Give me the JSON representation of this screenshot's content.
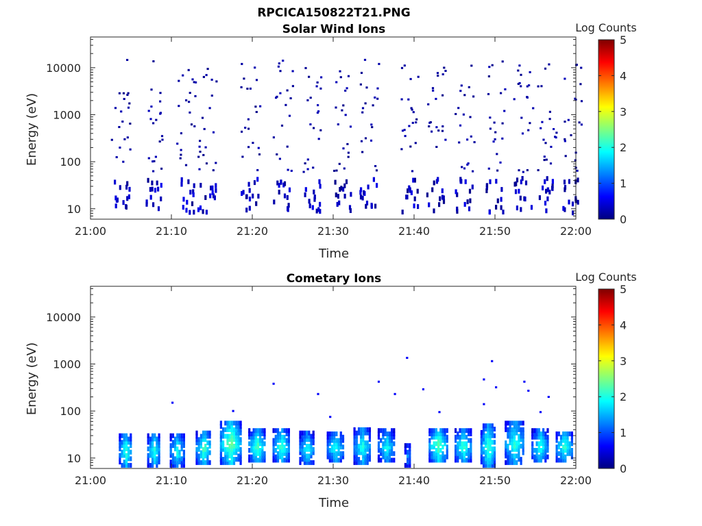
{
  "figure": {
    "title": "RPCICA150822T21.PNG"
  },
  "colormap": {
    "name": "jet",
    "stops": [
      "#00007f",
      "#0000ff",
      "#00ffff",
      "#ffff00",
      "#ff0000",
      "#7f0000"
    ]
  },
  "chart_data": [
    {
      "type": "heatmap",
      "title": "Solar Wind Ions",
      "xlabel": "Time",
      "ylabel": "Energy (eV)",
      "yscale": "log",
      "xlim": [
        "21:00",
        "22:00"
      ],
      "ylim": [
        6,
        45000
      ],
      "xticks": [
        "21:00",
        "21:10",
        "21:20",
        "21:30",
        "21:40",
        "21:50",
        "22:00"
      ],
      "yticks": [
        {
          "value": 10,
          "label": "10"
        },
        {
          "value": 100,
          "label": "100"
        },
        {
          "value": 1000,
          "label": "1000"
        },
        {
          "value": 10000,
          "label": "10000"
        }
      ],
      "colorbar": {
        "label": "Log Counts",
        "range": [
          0,
          5
        ],
        "ticks": [
          "0",
          "1",
          "2",
          "3",
          "4",
          "5"
        ]
      },
      "sweep_start_minutes": [
        2.5,
        6.8,
        10.5,
        13.2,
        18.5,
        22.5,
        26.2,
        30.0,
        33.2,
        38.2,
        41.5,
        45.0,
        48.8,
        52.2,
        55.2,
        58.2
      ],
      "band_low": {
        "energy_eV": [
          8,
          45
        ],
        "log_counts": [
          0.05,
          0.55
        ]
      },
      "band_high": {
        "energy_eV": [
          60,
          15000
        ],
        "log_counts": [
          0.05,
          0.3
        ]
      }
    },
    {
      "type": "heatmap",
      "title": "Cometary Ions",
      "xlabel": "Time",
      "ylabel": "Energy (eV)",
      "yscale": "log",
      "xlim": [
        "21:00",
        "22:00"
      ],
      "ylim": [
        6,
        45000
      ],
      "xticks": [
        "21:00",
        "21:10",
        "21:20",
        "21:30",
        "21:40",
        "21:50",
        "22:00"
      ],
      "yticks": [
        {
          "value": 10,
          "label": "10"
        },
        {
          "value": 100,
          "label": "100"
        },
        {
          "value": 1000,
          "label": "1000"
        },
        {
          "value": 10000,
          "label": "10000"
        }
      ],
      "colorbar": {
        "label": "Log Counts",
        "range": [
          0,
          5
        ],
        "ticks": [
          "0",
          "1",
          "2",
          "3",
          "4",
          "5"
        ]
      },
      "bursts": [
        {
          "start_min": 3.5,
          "end_min": 5.0,
          "energy_eV": [
            7,
            35
          ],
          "peak_log_counts": 2.0
        },
        {
          "start_min": 7.0,
          "end_min": 8.5,
          "energy_eV": [
            7,
            35
          ],
          "peak_log_counts": 1.9
        },
        {
          "start_min": 9.8,
          "end_min": 11.5,
          "energy_eV": [
            7,
            35
          ],
          "peak_log_counts": 1.8
        },
        {
          "start_min": 13.0,
          "end_min": 14.8,
          "energy_eV": [
            8,
            38
          ],
          "peak_log_counts": 2.1
        },
        {
          "start_min": 16.0,
          "end_min": 18.5,
          "energy_eV": [
            8,
            65
          ],
          "peak_log_counts": 2.3
        },
        {
          "start_min": 19.5,
          "end_min": 21.5,
          "energy_eV": [
            9,
            40
          ],
          "peak_log_counts": 2.1
        },
        {
          "start_min": 22.5,
          "end_min": 24.5,
          "energy_eV": [
            9,
            40
          ],
          "peak_log_counts": 2.0
        },
        {
          "start_min": 25.8,
          "end_min": 27.5,
          "energy_eV": [
            8,
            35
          ],
          "peak_log_counts": 1.8
        },
        {
          "start_min": 29.2,
          "end_min": 31.2,
          "energy_eV": [
            9,
            35
          ],
          "peak_log_counts": 1.9
        },
        {
          "start_min": 32.5,
          "end_min": 34.5,
          "energy_eV": [
            8,
            45
          ],
          "peak_log_counts": 1.9
        },
        {
          "start_min": 35.5,
          "end_min": 37.5,
          "energy_eV": [
            9,
            40
          ],
          "peak_log_counts": 1.8
        },
        {
          "start_min": 38.8,
          "end_min": 39.5,
          "energy_eV": [
            7,
            20
          ],
          "peak_log_counts": 1.3
        },
        {
          "start_min": 41.8,
          "end_min": 44.0,
          "energy_eV": [
            9,
            45
          ],
          "peak_log_counts": 2.2
        },
        {
          "start_min": 45.0,
          "end_min": 47.0,
          "energy_eV": [
            9,
            40
          ],
          "peak_log_counts": 2.0
        },
        {
          "start_min": 48.2,
          "end_min": 50.0,
          "energy_eV": [
            7,
            50
          ],
          "peak_log_counts": 2.1
        },
        {
          "start_min": 51.2,
          "end_min": 53.5,
          "energy_eV": [
            8,
            60
          ],
          "peak_log_counts": 2.0
        },
        {
          "start_min": 54.5,
          "end_min": 56.5,
          "energy_eV": [
            9,
            40
          ],
          "peak_log_counts": 1.9
        },
        {
          "start_min": 57.5,
          "end_min": 59.5,
          "energy_eV": [
            9,
            38
          ],
          "peak_log_counts": 2.0
        }
      ],
      "scattered_points": [
        {
          "time_min": 10.0,
          "energy_eV": 150
        },
        {
          "time_min": 17.5,
          "energy_eV": 100
        },
        {
          "time_min": 22.5,
          "energy_eV": 380
        },
        {
          "time_min": 28.0,
          "energy_eV": 230
        },
        {
          "time_min": 29.5,
          "energy_eV": 75
        },
        {
          "time_min": 35.5,
          "energy_eV": 420
        },
        {
          "time_min": 37.5,
          "energy_eV": 230
        },
        {
          "time_min": 39.0,
          "energy_eV": 1350
        },
        {
          "time_min": 41.0,
          "energy_eV": 290
        },
        {
          "time_min": 43.0,
          "energy_eV": 95
        },
        {
          "time_min": 48.5,
          "energy_eV": 140
        },
        {
          "time_min": 48.5,
          "energy_eV": 470
        },
        {
          "time_min": 49.5,
          "energy_eV": 1150
        },
        {
          "time_min": 50.0,
          "energy_eV": 320
        },
        {
          "time_min": 53.5,
          "energy_eV": 420
        },
        {
          "time_min": 54.0,
          "energy_eV": 270
        },
        {
          "time_min": 55.5,
          "energy_eV": 95
        },
        {
          "time_min": 56.5,
          "energy_eV": 200
        }
      ]
    }
  ]
}
